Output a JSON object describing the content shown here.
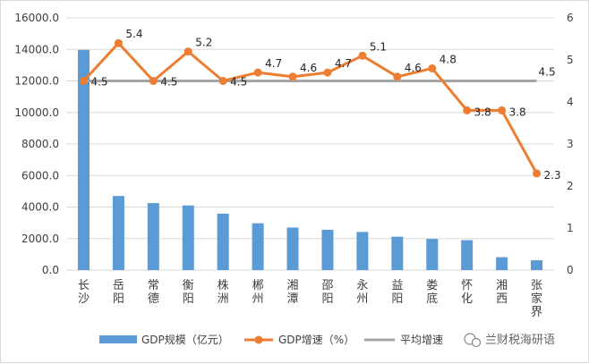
{
  "chart_data": {
    "type": "bar+line",
    "categories": [
      "长沙",
      "岳阳",
      "常德",
      "衡阳",
      "株洲",
      "郴州",
      "湘潭",
      "邵阳",
      "永州",
      "益阳",
      "娄底",
      "怀化",
      "湘西",
      "张家界"
    ],
    "series": [
      {
        "name": "GDP规模（亿元）",
        "type": "bar",
        "axis": "left",
        "color": "#5b9bd5",
        "values": [
          13970,
          4700,
          4250,
          4100,
          3580,
          2970,
          2700,
          2560,
          2420,
          2120,
          1980,
          1900,
          820,
          620
        ]
      },
      {
        "name": "GDP增速（%）",
        "type": "line",
        "axis": "right",
        "color": "#ed7d31",
        "values": [
          4.5,
          5.4,
          4.5,
          5.2,
          4.5,
          4.7,
          4.6,
          4.7,
          5.1,
          4.6,
          4.8,
          3.8,
          3.8,
          2.3
        ]
      },
      {
        "name": "平均增速",
        "type": "line",
        "axis": "right",
        "color": "#a5a5a5",
        "values": [
          4.5,
          4.5,
          4.5,
          4.5,
          4.5,
          4.5,
          4.5,
          4.5,
          4.5,
          4.5,
          4.5,
          4.5,
          4.5,
          4.5
        ]
      }
    ],
    "growth_labels": [
      "4.5",
      "5.4",
      "4.5",
      "5.2",
      "4.5",
      "4.7",
      "4.6",
      "4.7",
      "5.1",
      "4.6",
      "4.8",
      "3.8",
      "3.8",
      "2.3"
    ],
    "average_label": "4.5",
    "y_left": {
      "min": 0,
      "max": 16000,
      "step": 2000,
      "ticks": [
        "0.0",
        "2000.0",
        "4000.0",
        "6000.0",
        "8000.0",
        "10000.0",
        "12000.0",
        "14000.0",
        "16000.0"
      ]
    },
    "y_right": {
      "min": 0,
      "max": 6,
      "step": 1,
      "ticks": [
        "0",
        "1",
        "2",
        "3",
        "4",
        "5",
        "6"
      ]
    },
    "grid": true,
    "legend_position": "bottom"
  },
  "watermark": "兰财税海研语"
}
